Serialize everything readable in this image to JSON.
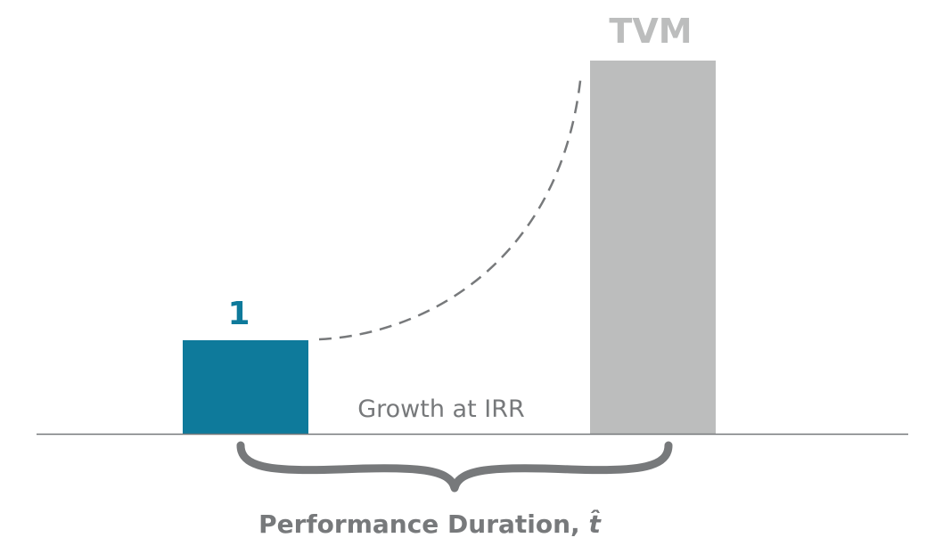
{
  "diagram": {
    "start_bar_label": "1",
    "end_bar_label": "TVM",
    "curve_label": "Growth at IRR",
    "brace_label": "Performance Duration, ",
    "brace_label_symbol": "t̂",
    "colors": {
      "start_bar": "#0e7a9b",
      "end_bar": "#bcbdbd",
      "text_gray": "#77797b",
      "end_label": "#bcbdbd",
      "axis": "#77797b"
    }
  }
}
